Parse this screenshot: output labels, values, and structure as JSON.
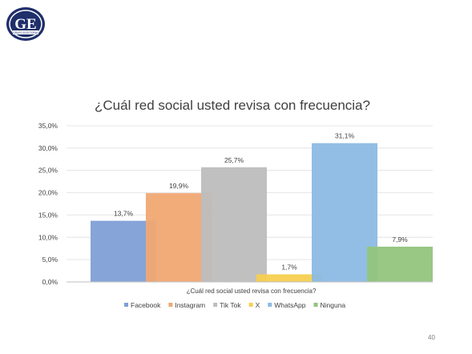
{
  "logo": {
    "text": "GE",
    "subtext": "GRUPO ELECTORAL"
  },
  "chart_data": {
    "type": "bar",
    "title": "¿Cuál red social usted revisa con frecuencia?",
    "xlabel": "¿Cuál red social usted revisa con frecuencia?",
    "ylabel": "",
    "ylim": [
      0,
      35
    ],
    "yticks": [
      0,
      5,
      10,
      15,
      20,
      25,
      30,
      35
    ],
    "ytick_labels": [
      "0,0%",
      "5,0%",
      "10,0%",
      "15,0%",
      "20,0%",
      "25,0%",
      "30,0%",
      "35,0%"
    ],
    "grid": true,
    "legend_position": "bottom",
    "series": [
      {
        "name": "Facebook",
        "value": 13.7,
        "label": "13,7%",
        "color": "#7f9fd6"
      },
      {
        "name": "Instagram",
        "value": 19.9,
        "label": "19,9%",
        "color": "#f0a873"
      },
      {
        "name": "Tik Tok",
        "value": 25.7,
        "label": "25,7%",
        "color": "#bdbdbd"
      },
      {
        "name": "X",
        "value": 1.7,
        "label": "1,7%",
        "color": "#f7cf4f"
      },
      {
        "name": "WhatsApp",
        "value": 31.1,
        "label": "31,1%",
        "color": "#8cbbe4"
      },
      {
        "name": "Ninguna",
        "value": 7.9,
        "label": "7,9%",
        "color": "#93c47d"
      }
    ]
  },
  "footer": {
    "page_number": "40"
  }
}
